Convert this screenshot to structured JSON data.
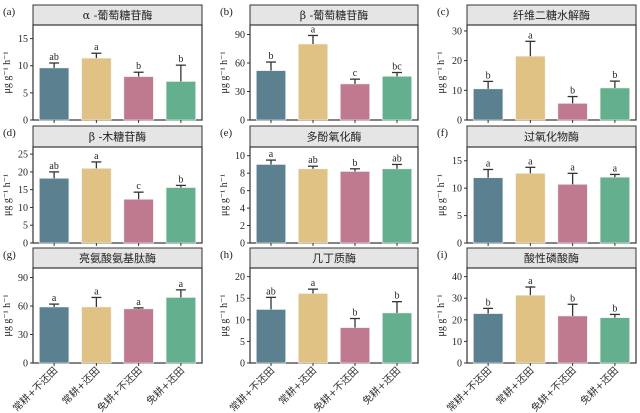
{
  "chart_data": {
    "type": "bar",
    "layout": "3x3 facet grid",
    "categories": [
      "常耕+不还田",
      "常耕+还田",
      "免耕+不还田",
      "免耕+还田"
    ],
    "colors": [
      "#5b8191",
      "#dfc284",
      "#c07a8f",
      "#64b08e"
    ],
    "ylabel": "μg g⁻¹ h⁻¹",
    "xlabel": "",
    "grid": false,
    "panels": [
      {
        "label": "(a)",
        "title": "α -葡萄糖苷酶",
        "ylim": [
          0,
          17.5
        ],
        "yticks": [
          0,
          5,
          10,
          15
        ],
        "values": [
          9.6,
          11.4,
          8.0,
          7.1
        ],
        "errors": [
          0.9,
          0.9,
          0.8,
          3.0
        ],
        "letters": [
          "ab",
          "a",
          "b",
          "b"
        ]
      },
      {
        "label": "(b)",
        "title": "β -葡萄糖苷酶",
        "ylim": [
          0,
          100
        ],
        "yticks": [
          0,
          30,
          60,
          90
        ],
        "values": [
          52,
          80,
          38,
          46
        ],
        "errors": [
          9,
          9,
          5,
          4
        ],
        "letters": [
          "b",
          "a",
          "c",
          "bc"
        ]
      },
      {
        "label": "(c)",
        "title": "纤维二糖水解酶",
        "ylim": [
          0,
          32
        ],
        "yticks": [
          0,
          10,
          20,
          30
        ],
        "values": [
          10.5,
          21.5,
          5.6,
          10.8
        ],
        "errors": [
          2.5,
          5.0,
          2.3,
          2.3
        ],
        "letters": [
          "b",
          "a",
          "b",
          "b"
        ]
      },
      {
        "label": "(d)",
        "title": "β -木糖苷酶",
        "ylim": [
          0,
          27
        ],
        "yticks": [
          0,
          5,
          10,
          15,
          20,
          25
        ],
        "values": [
          18.2,
          21.0,
          12.3,
          15.6
        ],
        "errors": [
          1.8,
          1.8,
          2.0,
          0.6
        ],
        "letters": [
          "ab",
          "a",
          "c",
          "b"
        ]
      },
      {
        "label": "(e)",
        "title": "多酚氧化酶",
        "ylim": [
          0,
          11
        ],
        "yticks": [
          0,
          2,
          4,
          6,
          8,
          10
        ],
        "values": [
          9.0,
          8.5,
          8.2,
          8.5
        ],
        "errors": [
          0.5,
          0.3,
          0.3,
          0.5
        ],
        "letters": [
          "a",
          "ab",
          "b",
          "ab"
        ]
      },
      {
        "label": "(f)",
        "title": "过氧化物酶",
        "ylim": [
          0,
          17.5
        ],
        "yticks": [
          0,
          5,
          10,
          15
        ],
        "values": [
          11.9,
          12.7,
          10.7,
          12.0
        ],
        "errors": [
          1.5,
          1.1,
          2.0,
          0.5
        ],
        "letters": [
          "a",
          "a",
          "a",
          "a"
        ]
      },
      {
        "label": "(g)",
        "title": "亮氨酸氨基肽酶",
        "ylim": [
          0,
          100
        ],
        "yticks": [
          0,
          30,
          60,
          90
        ],
        "values": [
          59,
          59,
          57,
          69
        ],
        "errors": [
          3,
          10,
          1,
          8
        ],
        "letters": [
          "a",
          "a",
          "a",
          "a"
        ]
      },
      {
        "label": "(h)",
        "title": "几丁质酶",
        "ylim": [
          0,
          22
        ],
        "yticks": [
          0,
          5,
          10,
          15,
          20
        ],
        "values": [
          12.4,
          16.1,
          8.2,
          11.6
        ],
        "errors": [
          2.8,
          1.0,
          2.1,
          2.6
        ],
        "letters": [
          "ab",
          "a",
          "b",
          "b"
        ]
      },
      {
        "label": "(i)",
        "title": "酸性磷酸酶",
        "ylim": [
          0,
          44
        ],
        "yticks": [
          0,
          10,
          20,
          30,
          40
        ],
        "values": [
          22.9,
          31.4,
          21.8,
          21.0
        ],
        "errors": [
          2.4,
          3.8,
          5.4,
          1.5
        ],
        "letters": [
          "b",
          "a",
          "b",
          "b"
        ]
      }
    ]
  }
}
